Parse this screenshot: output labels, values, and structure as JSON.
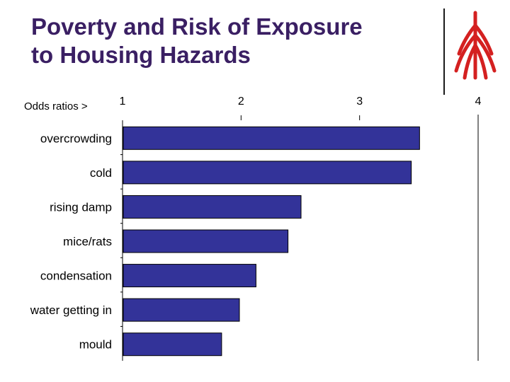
{
  "slide": {
    "title_line1": "Poverty and Risk of Exposure",
    "title_line2": "to Housing Hazards"
  },
  "logo": {
    "icon": "red-tree-logo",
    "color": "#d42020"
  },
  "chart_data": {
    "type": "bar",
    "orientation": "horizontal",
    "axis_caption": "Odds ratios >",
    "categories": [
      "overcrowding",
      "cold",
      "rising damp",
      "mice/rats",
      "condensation",
      "water getting in",
      "mould"
    ],
    "values": [
      3.5,
      3.43,
      2.5,
      2.39,
      2.12,
      1.98,
      1.83
    ],
    "xlim": [
      1,
      4
    ],
    "xticks": [
      "1",
      "2",
      "3",
      "4"
    ],
    "bar_color": "#333399",
    "grid": false,
    "legend": "none"
  }
}
